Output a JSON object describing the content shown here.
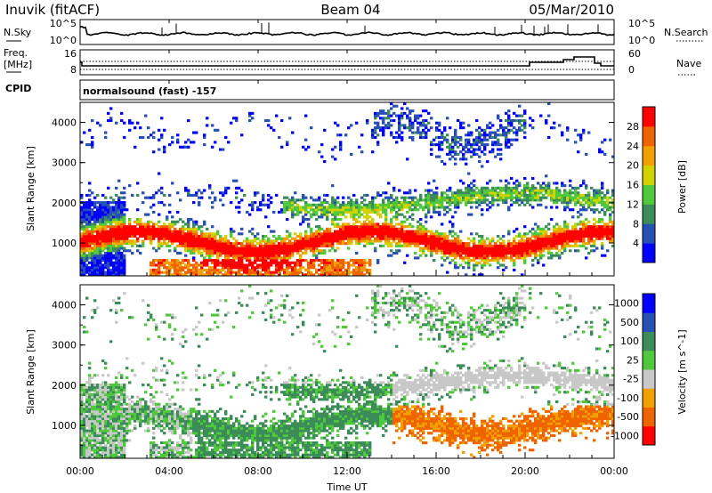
{
  "header": {
    "title": "Inuvik (fitACF)",
    "beam": "Beam 04",
    "date": "05/Mar/2010"
  },
  "noise_panel": {
    "left_label": "N.Sky",
    "right_label": "N.Search",
    "y_ticks": [
      "10^5",
      "10^0"
    ],
    "right_ticks": [
      "10^5",
      "10^0"
    ]
  },
  "freq_panel": {
    "left_label_1": "Freq.",
    "left_label_2": "[MHz]",
    "left_ticks": [
      "16",
      "8"
    ],
    "right_label": "Nave",
    "right_ticks": [
      "60",
      "0"
    ]
  },
  "cpid": {
    "label": "CPID",
    "program": "normalsound (fast) -157"
  },
  "colors": {
    "power_scale": [
      "#0000ff",
      "#2850b4",
      "#3c8c5a",
      "#50c83c",
      "#d2d200",
      "#f0a000",
      "#f06400",
      "#ff0000"
    ],
    "velocity_scale": [
      "#ff0000",
      "#f06400",
      "#f0a000",
      "#c8c8c8",
      "#50c83c",
      "#3c8c5a",
      "#2850b4",
      "#0000ff"
    ]
  },
  "chart_data": [
    {
      "type": "heatmap",
      "name": "power",
      "ylabel": "Slant Range [km]",
      "y_ticks": [
        "1000",
        "2000",
        "3000",
        "4000"
      ],
      "ylim": [
        180,
        4500
      ],
      "colorbar_label": "Power [dB]",
      "colorbar_ticks": [
        "4",
        "8",
        "12",
        "16",
        "20",
        "24",
        "28"
      ]
    },
    {
      "type": "heatmap",
      "name": "velocity",
      "ylabel": "Slant Range [km]",
      "y_ticks": [
        "1000",
        "2000",
        "3000",
        "4000"
      ],
      "ylim": [
        180,
        4500
      ],
      "colorbar_label": "Velocity [m s^-1]",
      "colorbar_ticks": [
        "-1000",
        "-500",
        "-100",
        "-25",
        "25",
        "100",
        "500",
        "1000"
      ],
      "xlabel": "Time UT",
      "x_ticks": [
        "00:00",
        "04:00",
        "08:00",
        "12:00",
        "16:00",
        "20:00",
        "00:00"
      ]
    }
  ]
}
